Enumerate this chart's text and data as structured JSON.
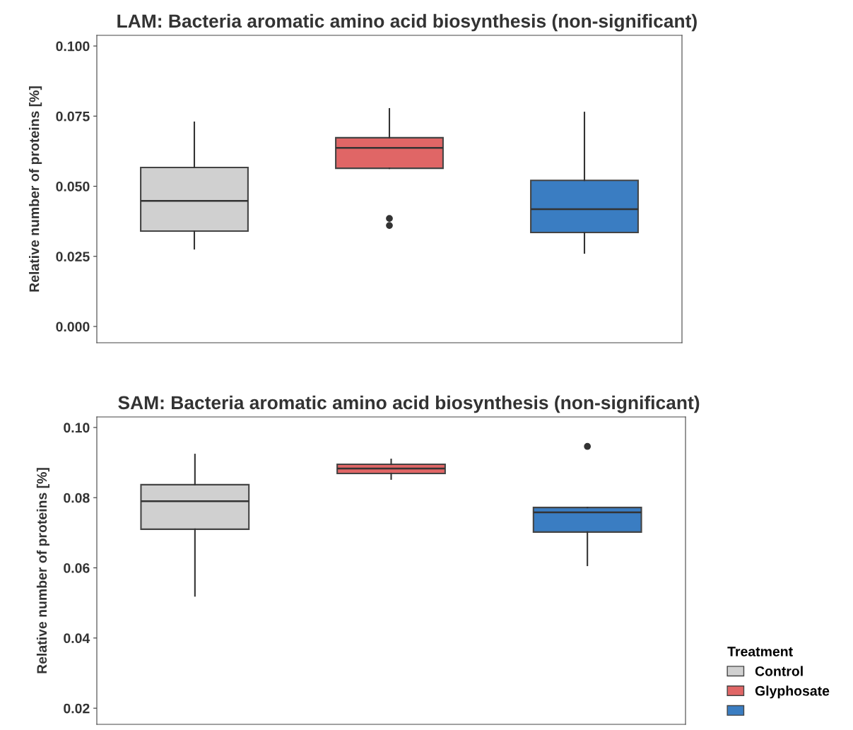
{
  "chart_data": [
    {
      "type": "box",
      "title": "LAM: Bacteria aromatic amino acid biosynthesis (non-significant)",
      "ylabel": "Relative number of proteins [%]",
      "categories": [
        null,
        null,
        null
      ],
      "ylim": [
        -0.0058,
        0.1038
      ],
      "yticks": [
        {
          "value": 0,
          "label": "0.000"
        },
        {
          "value": 0.025,
          "label": "0.025"
        },
        {
          "value": 0.05,
          "label": "0.050"
        },
        {
          "value": 0.075,
          "label": "0.075"
        },
        {
          "value": 0.1,
          "label": "0.100"
        }
      ],
      "grid": false,
      "legend": false,
      "series": [
        {
          "color": "#d0d0d0",
          "boxes": [
            {
              "low": 0.0277,
              "q1": 0.034,
              "median": 0.0448,
              "q3": 0.0567,
              "high": 0.0728
            },
            null,
            null
          ]
        },
        {
          "color": "#e06666",
          "boxes": [
            null,
            {
              "low": 0.0564,
              "q1": 0.0564,
              "median": 0.0637,
              "q3": 0.0673,
              "high": 0.0776,
              "outliers": [
                0.0385,
                0.036
              ]
            },
            null
          ]
        },
        {
          "color": "#3a7dc2",
          "boxes": [
            null,
            null,
            {
              "low": 0.0262,
              "q1": 0.0335,
              "median": 0.0418,
              "q3": 0.0521,
              "high": 0.0763
            }
          ]
        }
      ]
    },
    {
      "type": "box",
      "title": "SAM: Bacteria aromatic amino acid biosynthesis (non-significant)",
      "ylabel": "Relative number of proteins [%]",
      "categories": [
        null,
        null,
        null
      ],
      "ylim": [
        0.0154,
        0.103
      ],
      "yticks": [
        {
          "value": 0.02,
          "label": "0.02"
        },
        {
          "value": 0.04,
          "label": "0.04"
        },
        {
          "value": 0.06,
          "label": "0.06"
        },
        {
          "value": 0.08,
          "label": "0.08"
        },
        {
          "value": 0.1,
          "label": "0.10"
        }
      ],
      "grid": false,
      "legend": "bottom right",
      "legend_title": "Treatment",
      "series": [
        {
          "name": "Control",
          "color": "#d0d0d0",
          "boxes": [
            {
              "low": 0.052,
              "q1": 0.071,
              "median": 0.079,
              "q3": 0.0837,
              "high": 0.0923
            },
            null,
            null
          ]
        },
        {
          "name": "Glyphosate",
          "color": "#e06666",
          "boxes": [
            null,
            {
              "low": 0.0853,
              "q1": 0.0869,
              "median": 0.0883,
              "q3": 0.0895,
              "high": 0.0909
            },
            null
          ]
        },
        {
          "color": "#3a7dc2",
          "boxes": [
            null,
            null,
            {
              "low": 0.0607,
              "q1": 0.0702,
              "median": 0.0758,
              "q3": 0.0772,
              "high": 0.0772,
              "outliers": [
                0.0946
              ]
            }
          ]
        }
      ]
    }
  ]
}
